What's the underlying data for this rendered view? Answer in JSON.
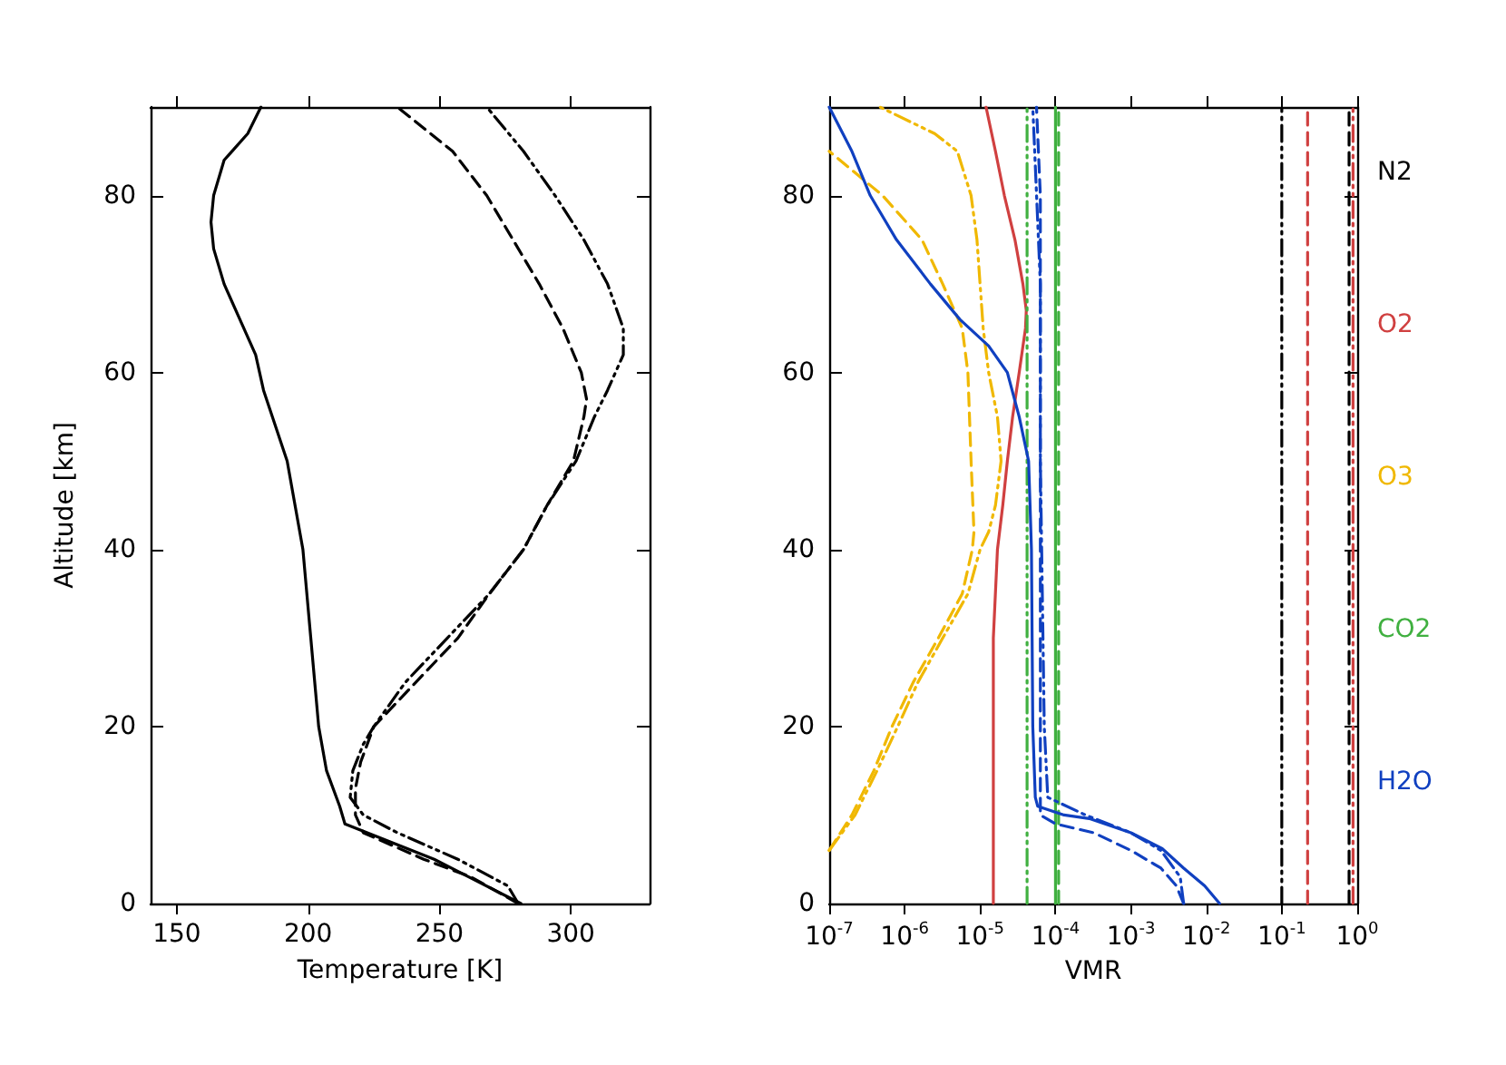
{
  "chart_data": [
    {
      "type": "line",
      "xlabel": "Temperature [K]",
      "ylabel": "Altitude [km]",
      "xlim": [
        140,
        330
      ],
      "xticks": [
        150,
        200,
        250,
        300
      ],
      "ylim": [
        0,
        90
      ],
      "yticks": [
        0,
        20,
        40,
        60,
        80
      ],
      "grid": false,
      "marker": "none",
      "legend": false,
      "series": [
        {
          "color": "#000000",
          "line_style": "solid",
          "x": [
            281,
            248,
            214,
            212,
            207,
            204,
            201,
            198,
            192,
            183,
            180,
            174,
            168,
            164,
            163,
            164,
            168,
            177,
            182
          ],
          "values": [
            0,
            5,
            9,
            11,
            15,
            20,
            30,
            40,
            50,
            58,
            62,
            66,
            70,
            74,
            77,
            80,
            84,
            87,
            90
          ]
        },
        {
          "color": "#000000",
          "line_style": "dashed",
          "x": [
            280,
            262,
            244,
            221,
            218,
            218,
            220,
            225,
            241,
            257,
            269,
            282,
            291,
            301,
            305,
            306,
            304,
            297,
            288,
            278,
            268,
            255,
            234
          ],
          "values": [
            0,
            3,
            5,
            8,
            10,
            13,
            16,
            20,
            25,
            30,
            35,
            40,
            45,
            50,
            55,
            57,
            60,
            65,
            70,
            75,
            80,
            85,
            90
          ]
        },
        {
          "color": "#000000",
          "line_style": "dotted",
          "x": [
            280,
            276,
            257,
            234,
            221,
            216,
            217,
            221,
            225,
            237,
            253,
            269,
            282,
            291,
            302,
            309,
            314,
            320,
            320,
            314,
            305,
            294,
            282,
            268
          ],
          "values": [
            0,
            2,
            5,
            8,
            10,
            12,
            15,
            18,
            20,
            25,
            30,
            35,
            40,
            45,
            50,
            55,
            58,
            62,
            65,
            70,
            75,
            80,
            85,
            90
          ]
        }
      ]
    },
    {
      "type": "line",
      "xlabel": "VMR",
      "log": "x",
      "xlim": [
        1e-07,
        1
      ],
      "xticks": [
        {
          "value": 1e-07,
          "label": "10$^{-7}$"
        },
        {
          "value": 1e-06,
          "label": "10$^{-6}$"
        },
        {
          "value": 1e-05,
          "label": "10$^{-5}$"
        },
        {
          "value": 0.0001,
          "label": "10$^{-4}$"
        },
        {
          "value": 0.001,
          "label": "10$^{-3}$"
        },
        {
          "value": 0.01,
          "label": "10$^{-2}$"
        },
        {
          "value": 0.1,
          "label": "10$^{-1}$"
        },
        {
          "value": 1,
          "label": "10$^{0}$"
        }
      ],
      "ylim": [
        0,
        90
      ],
      "yticks": [
        0,
        20,
        40,
        60,
        80
      ],
      "grid": false,
      "marker": "none",
      "legend": "right",
      "series": [
        {
          "name": "N2",
          "color": "#000000",
          "line_style": "dashed",
          "x": [
            0.78,
            0.78
          ],
          "values": [
            0,
            90
          ]
        },
        {
          "color": "#000000",
          "line_style": "dotted",
          "x": [
            0.1,
            0.1
          ],
          "values": [
            0,
            90
          ]
        },
        {
          "name": "O2",
          "color": "#d04040",
          "line_style": "solid",
          "x": [
            1.5e-05,
            1.5e-05,
            1.5e-05,
            1.7e-05,
            2e-05,
            2.3e-05,
            2.7e-05,
            3.3e-05,
            4e-05,
            4.1e-05,
            3.7e-05,
            2.9e-05,
            2.1e-05,
            1.6e-05,
            1.2e-05
          ],
          "values": [
            0,
            20,
            30,
            40,
            45,
            50,
            55,
            60,
            65,
            67,
            70,
            75,
            80,
            85,
            90
          ]
        },
        {
          "color": "#d04040",
          "line_style": "dashed",
          "x": [
            0.22,
            0.22
          ],
          "values": [
            0,
            90
          ]
        },
        {
          "color": "#d04040",
          "line_style": "dotted",
          "x": [
            0.88,
            0.88
          ],
          "values": [
            0,
            90
          ]
        },
        {
          "name": "O3",
          "color": "#f0b800",
          "line_style": "dashed",
          "x": [
            1e-07,
            2e-07,
            3.9e-07,
            6.8e-07,
            1.3e-06,
            2.8e-06,
            5.8e-06,
            7.9e-06,
            8.3e-06,
            7.6e-06,
            6.9e-06,
            5.8e-06,
            3.2e-06,
            1.7e-06,
            5.1e-07,
            1e-07
          ],
          "values": [
            6,
            10,
            15,
            20,
            25,
            30,
            35,
            40,
            42,
            50,
            60,
            65,
            70,
            75,
            80,
            85
          ]
        },
        {
          "color": "#f0b800",
          "line_style": "dotted",
          "x": [
            1e-07,
            2.2e-07,
            4.3e-07,
            8.1e-07,
            1.5e-06,
            3.2e-06,
            6.9e-06,
            1e-05,
            1.3e-05,
            1.6e-05,
            1.9e-05,
            1.7e-05,
            1.3e-05,
            1.1e-05,
            1e-05,
            9.1e-06,
            7.6e-06,
            5e-06,
            2.5e-06,
            4.7e-07
          ],
          "values": [
            6,
            10,
            15,
            20,
            25,
            30,
            35,
            40,
            42,
            45,
            50,
            55,
            60,
            65,
            70,
            75,
            80,
            85,
            87,
            90
          ]
        },
        {
          "name": "CO2",
          "color": "#40b040",
          "line_style": "solid",
          "x": [
            0.0001,
            0.0001
          ],
          "values": [
            0,
            90
          ]
        },
        {
          "color": "#40b040",
          "line_style": "dashed",
          "x": [
            0.00011,
            0.00011
          ],
          "values": [
            0,
            90
          ]
        },
        {
          "color": "#40b040",
          "line_style": "dotted",
          "x": [
            4.2e-05,
            4.2e-05
          ],
          "values": [
            0,
            90
          ]
        },
        {
          "name": "H2O",
          "color": "#1040c0",
          "line_style": "solid",
          "x": [
            0.015,
            0.0095,
            0.005,
            0.0026,
            0.001,
            0.00028,
            0.00013,
            5.8e-05,
            5.4e-05,
            5e-05,
            4.8e-05,
            4.6e-05,
            4.4e-05,
            3.3e-05,
            2.3e-05,
            1.3e-05,
            5.4e-06,
            2.2e-06,
            7.8e-07,
            3.5e-07,
            2e-07,
            1e-07
          ],
          "values": [
            0,
            2,
            4,
            6.2,
            8,
            9.6,
            10,
            11,
            12,
            20,
            40,
            45,
            50,
            55,
            60,
            63,
            66,
            70,
            75,
            80,
            85,
            90
          ]
        },
        {
          "color": "#1040c0",
          "line_style": "dashed",
          "x": [
            0.005,
            0.004,
            0.0025,
            0.001,
            0.00032,
            0.0001,
            6.3e-05,
            6.3e-05,
            6.3e-05,
            6.3e-05,
            6.3e-05,
            5.6e-05
          ],
          "values": [
            0,
            2,
            4,
            6,
            8,
            9,
            10,
            20,
            40,
            60,
            80,
            90
          ]
        },
        {
          "color": "#1040c0",
          "line_style": "dotted",
          "x": [
            0.005,
            0.0045,
            0.0025,
            0.001,
            0.00025,
            7.9e-05,
            7.1e-05,
            6.3e-05,
            6.3e-05,
            5e-05
          ],
          "values": [
            0,
            3,
            6,
            8,
            10,
            12,
            20,
            50,
            70,
            90
          ]
        }
      ]
    }
  ]
}
